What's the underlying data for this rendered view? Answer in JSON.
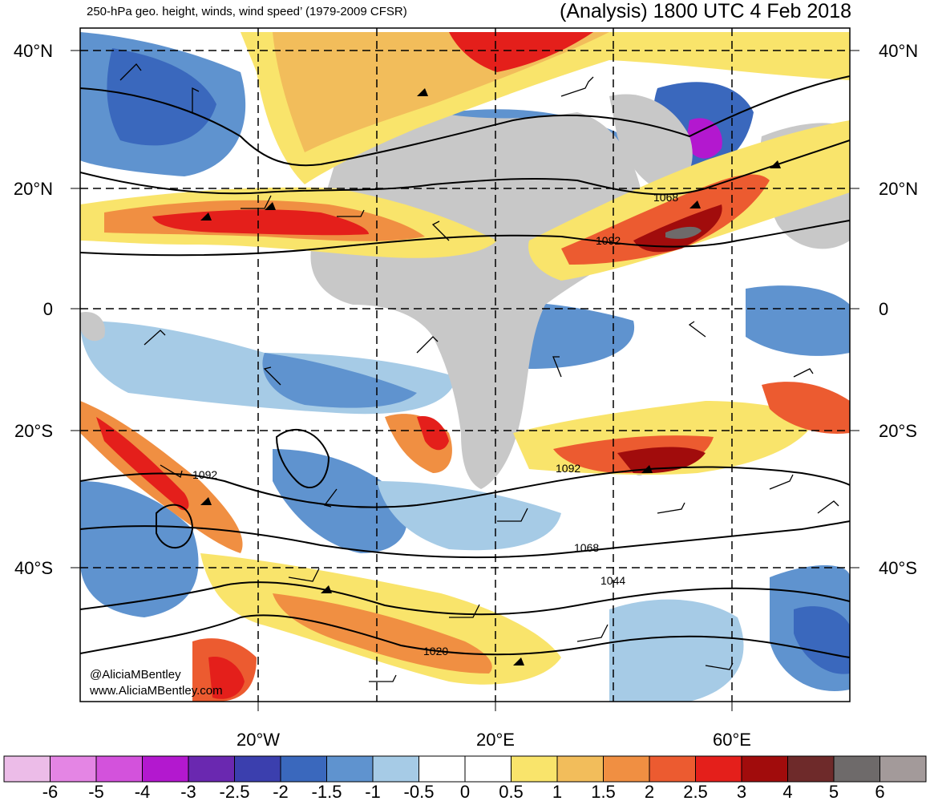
{
  "header": {
    "title_left": "250-hPa geo. height, winds, wind speed’ (1979-2009 CFSR)",
    "title_right": "(Analysis) 1800 UTC 4 Feb 2018"
  },
  "map": {
    "lat_labels": [
      "40°N",
      "20°N",
      "0",
      "20°S",
      "40°S"
    ],
    "lon_labels": [
      "20°W",
      "20°E",
      "60°E"
    ],
    "contour_labels": [
      "1068",
      "1092",
      "1092",
      "1092",
      "1068",
      "1044",
      "1020"
    ],
    "credit": [
      "@AliciaMBentley",
      "www.AliciaMBentley.com"
    ]
  },
  "colorbar": {
    "labels": [
      "-6",
      "-5",
      "-4",
      "-3",
      "-2.5",
      "-2",
      "-1.5",
      "-1",
      "-0.5",
      "0",
      "0.5",
      "1",
      "1.5",
      "2",
      "2.5",
      "3",
      "4",
      "5",
      "6"
    ],
    "colors": [
      "#ecbce8",
      "#e485e4",
      "#d352dc",
      "#b318cf",
      "#6a28b0",
      "#3b3fae",
      "#3a68bd",
      "#5f93cf",
      "#a6cbe6",
      "#ffffff",
      "#ffffff",
      "#f9e46b",
      "#f2bd5b",
      "#f08f42",
      "#ec5b30",
      "#e41f1b",
      "#a10c0c",
      "#6e2a2a",
      "#6e6a6a",
      "#a39a9a"
    ]
  }
}
